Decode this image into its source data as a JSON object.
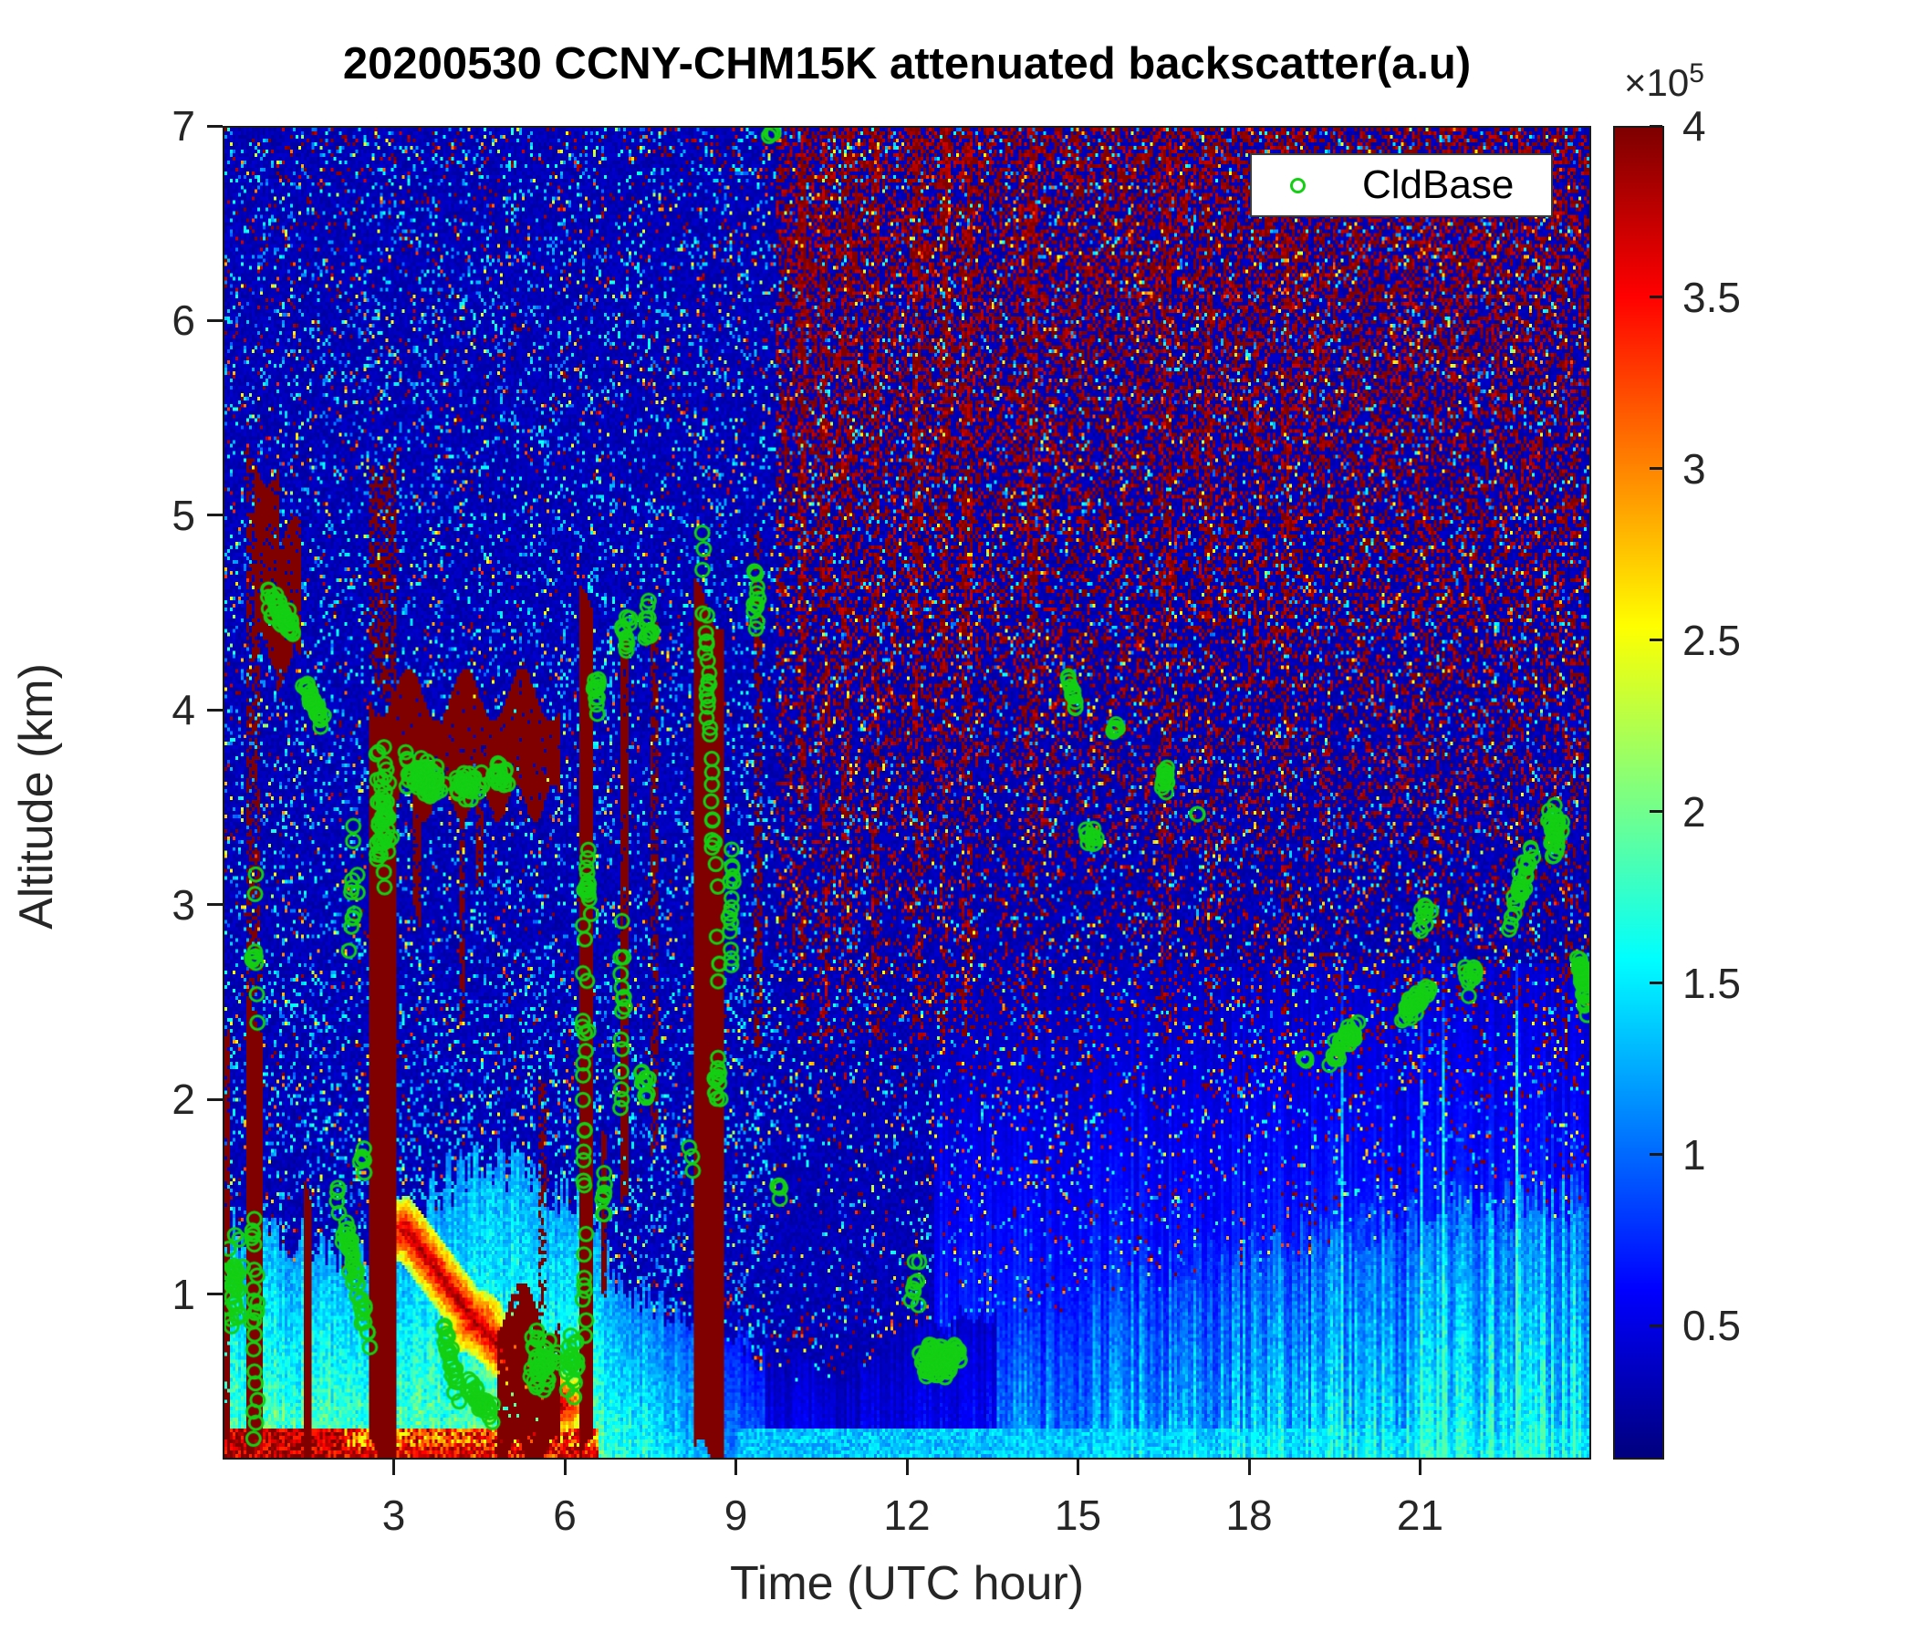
{
  "title": "20200530 CCNY-CHM15K attenuated backscatter(a.u)",
  "axes": {
    "xlabel": "Time (UTC hour)",
    "ylabel": "Altitude (km)",
    "x_ticks": [
      3,
      6,
      9,
      12,
      15,
      18,
      21
    ],
    "y_ticks": [
      1,
      2,
      3,
      4,
      5,
      6,
      7
    ],
    "x_range_hours": [
      0,
      24
    ],
    "y_range_km": [
      0.15,
      7
    ]
  },
  "legend": {
    "label": "CldBase",
    "marker": "green-open-circle"
  },
  "colorbar": {
    "exponent_prefix": "×10",
    "exponent": "5",
    "ticks": [
      0.5,
      1,
      1.5,
      2,
      2.5,
      3,
      3.5,
      4
    ],
    "value_range": [
      0.11,
      4
    ],
    "colormap": "jet"
  },
  "colors": {
    "marker_green": "#14cf14",
    "axis": "#1a1a1a",
    "tick_label": "#262626",
    "background": "#ffffff",
    "saturated_red": "#7f0000"
  },
  "chart_data": {
    "type": "heatmap",
    "title": "20200530 CCNY-CHM15K attenuated backscatter(a.u)",
    "xlabel": "Time (UTC hour)",
    "ylabel": "Altitude (km)",
    "x_range": [
      0,
      24
    ],
    "y_range": [
      0.15,
      7
    ],
    "value_units": "1e5 a.u.",
    "value_range": [
      0.11,
      4
    ],
    "boundary_layer_top_km": [
      [
        0,
        1.35
      ],
      [
        1,
        1.3
      ],
      [
        2,
        1.2
      ],
      [
        2.6,
        1.15
      ],
      [
        3,
        1.2
      ],
      [
        3.6,
        1.5
      ],
      [
        4.6,
        1.7
      ],
      [
        5.5,
        1.6
      ],
      [
        6.3,
        1.45
      ],
      [
        7,
        1.0
      ],
      [
        8,
        0.9
      ],
      [
        9,
        0.75
      ],
      [
        10,
        0.6
      ],
      [
        11,
        0.6
      ],
      [
        12,
        0.8
      ],
      [
        13,
        0.85
      ],
      [
        14,
        0.95
      ],
      [
        16,
        1.1
      ],
      [
        18,
        1.2
      ],
      [
        20,
        1.35
      ],
      [
        22,
        1.45
      ],
      [
        24,
        1.55
      ]
    ],
    "saturated_features": {
      "fields": [
        "t_start",
        "t_end",
        "alt_bottom",
        "alt_top",
        "density"
      ],
      "rows": [
        [
          0.0,
          0.1,
          0.15,
          2.3,
          0.85
        ],
        [
          0.37,
          0.66,
          0.15,
          2.45,
          1.0
        ],
        [
          0.37,
          0.62,
          2.45,
          5.3,
          0.45
        ],
        [
          0.55,
          0.95,
          4.3,
          5.3,
          0.92
        ],
        [
          0.9,
          1.35,
          4.2,
          4.85,
          0.9
        ],
        [
          1.4,
          1.53,
          0.15,
          1.5,
          1.0
        ],
        [
          2.56,
          3.03,
          0.15,
          4.1,
          1.0
        ],
        [
          2.56,
          3.03,
          4.1,
          5.35,
          0.55
        ],
        [
          2.56,
          5.92,
          3.52,
          4.08,
          0.96
        ],
        [
          3.32,
          3.47,
          2.95,
          3.6,
          0.8
        ],
        [
          4.12,
          4.22,
          2.5,
          3.6,
          0.7
        ],
        [
          4.42,
          4.58,
          3.0,
          3.55,
          0.75
        ],
        [
          5.5,
          5.65,
          0.9,
          2.2,
          0.5
        ],
        [
          4.78,
          5.92,
          0.15,
          0.92,
          0.95
        ],
        [
          6.22,
          6.5,
          0.15,
          4.5,
          1.0
        ],
        [
          6.62,
          6.74,
          1.05,
          1.95,
          0.9
        ],
        [
          6.95,
          7.1,
          1.4,
          4.35,
          0.9
        ],
        [
          7.5,
          7.63,
          1.75,
          4.55,
          0.55
        ],
        [
          8.26,
          8.77,
          0.15,
          4.55,
          1.0
        ],
        [
          9.3,
          9.44,
          2.35,
          4.85,
          0.5
        ],
        [
          21.3,
          21.38,
          2.6,
          4.2,
          0.3
        ],
        [
          23.55,
          23.62,
          2.2,
          3.3,
          0.45
        ]
      ]
    },
    "warm_ridge_segments": {
      "fields": [
        "t0",
        "alt0",
        "t1",
        "alt1"
      ],
      "rows": [
        [
          3.2,
          1.32,
          4.4,
          0.85
        ],
        [
          4.4,
          0.85,
          5.9,
          0.42
        ]
      ]
    },
    "red_noise_stripe_hours": [
      10.15,
      10.55,
      10.95,
      11.45,
      12.2,
      12.65,
      13.05,
      14.2,
      16.55,
      17.3,
      18.65
    ],
    "cloud_base_clusters": {
      "fields": [
        "t_center",
        "alt_center",
        "t_spread",
        "alt_spread",
        "count",
        "tilt"
      ],
      "rows": [
        [
          0.18,
          1.05,
          0.18,
          0.28,
          30,
          0
        ],
        [
          0.52,
          1.0,
          0.1,
          0.85,
          22,
          0
        ],
        [
          0.55,
          2.8,
          0.08,
          0.75,
          10,
          0
        ],
        [
          1.0,
          4.5,
          0.3,
          0.16,
          48,
          -0.3
        ],
        [
          1.55,
          4.05,
          0.22,
          0.14,
          30,
          -0.5
        ],
        [
          2.25,
          1.15,
          0.35,
          0.28,
          42,
          -0.8
        ],
        [
          2.28,
          3.0,
          0.1,
          0.5,
          12,
          0
        ],
        [
          2.42,
          1.7,
          0.08,
          0.18,
          6,
          0
        ],
        [
          2.8,
          3.45,
          0.18,
          0.42,
          45,
          0
        ],
        [
          3.5,
          3.66,
          0.38,
          0.13,
          60,
          0
        ],
        [
          4.3,
          3.62,
          0.25,
          0.1,
          32,
          0
        ],
        [
          4.85,
          3.66,
          0.15,
          0.09,
          18,
          0
        ],
        [
          3.95,
          0.68,
          0.2,
          0.22,
          25,
          -0.5
        ],
        [
          4.5,
          0.44,
          0.25,
          0.13,
          30,
          -0.3
        ],
        [
          5.6,
          0.64,
          0.3,
          0.22,
          42,
          0
        ],
        [
          6.1,
          0.62,
          0.15,
          0.28,
          20,
          0
        ],
        [
          6.33,
          1.8,
          0.07,
          1.5,
          26,
          0
        ],
        [
          6.38,
          3.1,
          0.09,
          0.22,
          15,
          0
        ],
        [
          6.55,
          4.1,
          0.1,
          0.13,
          12,
          0
        ],
        [
          6.7,
          1.45,
          0.07,
          0.18,
          8,
          0
        ],
        [
          7.0,
          2.5,
          0.06,
          0.75,
          15,
          0
        ],
        [
          7.05,
          4.4,
          0.09,
          0.13,
          12,
          0
        ],
        [
          7.4,
          2.05,
          0.09,
          0.13,
          10,
          0
        ],
        [
          7.45,
          4.45,
          0.09,
          0.18,
          12,
          0
        ],
        [
          8.2,
          1.7,
          0.05,
          0.1,
          3,
          0
        ],
        [
          8.55,
          3.75,
          0.2,
          0.75,
          36,
          -1
        ],
        [
          8.65,
          2.1,
          0.09,
          0.22,
          12,
          0
        ],
        [
          8.9,
          3.0,
          0.07,
          0.4,
          15,
          0
        ],
        [
          9.35,
          4.55,
          0.07,
          0.22,
          12,
          0
        ],
        [
          9.62,
          6.98,
          0.05,
          0.05,
          3,
          0
        ],
        [
          9.75,
          1.5,
          0.04,
          0.07,
          4,
          0
        ],
        [
          12.6,
          0.65,
          0.48,
          0.1,
          95,
          0
        ],
        [
          12.15,
          1.05,
          0.1,
          0.18,
          8,
          0
        ],
        [
          14.9,
          4.1,
          0.13,
          0.09,
          12,
          -0.8
        ],
        [
          15.25,
          3.35,
          0.11,
          0.09,
          10,
          0
        ],
        [
          15.65,
          3.9,
          0.07,
          0.07,
          6,
          0
        ],
        [
          16.55,
          3.65,
          0.11,
          0.1,
          14,
          0
        ],
        [
          17.1,
          3.47,
          0.04,
          0.04,
          2,
          0
        ],
        [
          19.0,
          2.2,
          0.05,
          0.05,
          3,
          0
        ],
        [
          19.7,
          2.3,
          0.3,
          0.13,
          30,
          0.4
        ],
        [
          20.9,
          2.48,
          0.33,
          0.16,
          36,
          0.3
        ],
        [
          21.1,
          2.92,
          0.14,
          0.12,
          10,
          0
        ],
        [
          21.9,
          2.62,
          0.18,
          0.13,
          12,
          0
        ],
        [
          22.8,
          3.1,
          0.25,
          0.18,
          30,
          0.6
        ],
        [
          23.4,
          3.38,
          0.14,
          0.17,
          30,
          0
        ],
        [
          23.88,
          2.6,
          0.1,
          0.18,
          36,
          -0.5
        ]
      ]
    }
  }
}
